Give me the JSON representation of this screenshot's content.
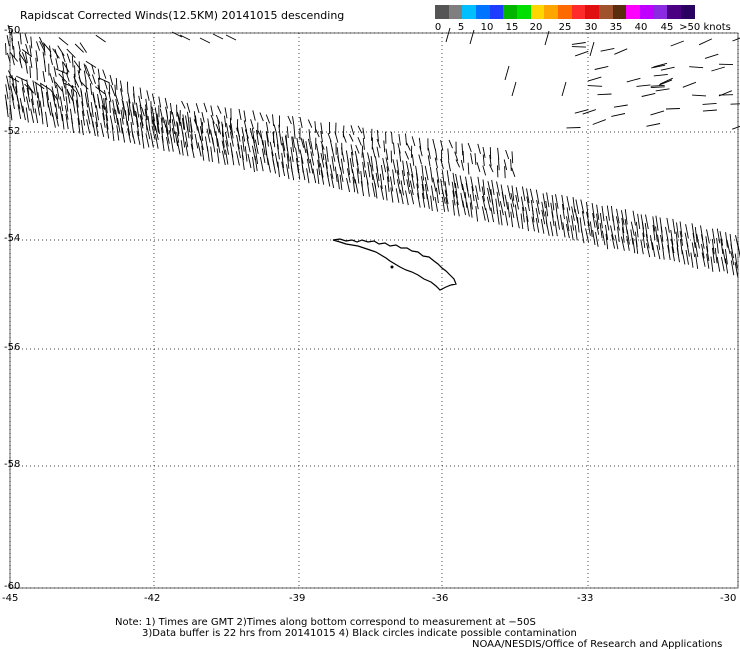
{
  "title": "Rapidscat Corrected Winds(12.5KM) 20141015 descending",
  "legend": {
    "colors": [
      "#555555",
      "#7f7f7f",
      "#00bfff",
      "#0073ff",
      "#1e3cff",
      "#00b400",
      "#00e000",
      "#ffd700",
      "#ffa500",
      "#ff6a00",
      "#ff2a2a",
      "#e01010",
      "#a0522d",
      "#5a2d0c",
      "#ff00ff",
      "#c000ff",
      "#8a2be2",
      "#4b0082",
      "#2a0060"
    ],
    "labels": [
      "0",
      "5",
      "10",
      "15",
      "20",
      "25",
      "30",
      "35",
      "40",
      "45",
      ">50 knots"
    ]
  },
  "axes": {
    "lon_ticks": [
      "-45",
      "-42",
      "-39",
      "-36",
      "-33",
      "-30"
    ],
    "lat_ticks": [
      "-50",
      "-52",
      "-54",
      "-56",
      "-58",
      "-60"
    ]
  },
  "notes": {
    "line1": "Note: 1) Times are GMT 2)Times along bottom correspond to measurement at −50S",
    "line2": "3)Data buffer is 22 hrs from 20141015 4) Black circles indicate possible contamination",
    "credit": "NOAA/NESDIS/Office of Research and Applications"
  }
}
